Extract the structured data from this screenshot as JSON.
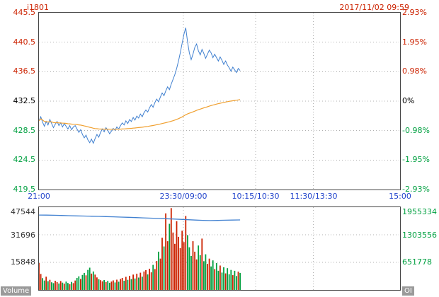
{
  "header": {
    "symbol": "i1801",
    "datetime": "2017/11/02 09:59"
  },
  "footer": {
    "volume_label": "Volume",
    "oi_label": "OI"
  },
  "colors": {
    "up": "#cc2200",
    "down": "#00a040",
    "neutral": "#000000",
    "price_line": "#4080d0",
    "avg_line": "#f0a030",
    "time_label": "#2244cc",
    "grid": "#b0b0b0",
    "border": "#444444",
    "axis_text": "#333333"
  },
  "chart_data": [
    {
      "type": "line",
      "title": "i1801 intraday price with average price line",
      "legend": "none",
      "grid": true,
      "ylim": [
        419.5,
        445.5
      ],
      "session_end_fraction": 0.557,
      "y_ticks_price": [
        "445.5",
        "440.5",
        "436.5",
        "432.5",
        "428.5",
        "424.5",
        "419.5"
      ],
      "y_tick_price_colors": [
        "up",
        "up",
        "up",
        "neutral",
        "down",
        "down",
        "down"
      ],
      "y_ticks_percent": [
        "2.93%",
        "1.95%",
        "0.98%",
        "0%",
        "-0.98%",
        "-1.95%",
        "-2.93%"
      ],
      "y_tick_percent_colors": [
        "up",
        "up",
        "up",
        "neutral",
        "down",
        "down",
        "down"
      ],
      "x_ticks": [
        {
          "label": "21:00",
          "pos": 0.0
        },
        {
          "label": "23:30/09:00",
          "pos": 0.4
        },
        {
          "label": "10:15/10:30",
          "pos": 0.6
        },
        {
          "label": "11:30/13:30",
          "pos": 0.76
        },
        {
          "label": "15:00",
          "pos": 1.0
        }
      ],
      "series": [
        {
          "name": "price",
          "values": [
            429.6,
            430.2,
            429.4,
            428.8,
            429.5,
            429.0,
            429.8,
            429.2,
            428.6,
            429.1,
            429.5,
            428.9,
            429.3,
            428.7,
            429.2,
            428.8,
            428.4,
            428.9,
            428.3,
            428.7,
            428.9,
            428.4,
            427.9,
            428.3,
            427.6,
            427.1,
            427.5,
            426.8,
            426.4,
            426.9,
            426.3,
            427.0,
            427.6,
            427.2,
            427.9,
            428.4,
            428.0,
            428.6,
            428.2,
            427.7,
            428.1,
            428.5,
            428.2,
            428.7,
            428.4,
            428.9,
            429.3,
            429.0,
            429.6,
            429.2,
            429.8,
            429.5,
            430.1,
            429.7,
            430.3,
            430.0,
            430.6,
            430.2,
            430.8,
            431.2,
            430.9,
            431.5,
            432.0,
            431.6,
            432.3,
            432.8,
            432.4,
            433.1,
            433.7,
            433.3,
            434.0,
            434.6,
            434.2,
            435.0,
            435.7,
            436.4,
            437.3,
            438.4,
            439.6,
            441.0,
            442.3,
            443.3,
            441.2,
            439.6,
            438.6,
            439.4,
            440.4,
            440.9,
            439.9,
            439.3,
            440.1,
            439.5,
            438.8,
            439.4,
            440.0,
            439.6,
            438.9,
            439.4,
            438.9,
            438.4,
            439.0,
            438.5,
            437.9,
            438.4,
            437.8,
            437.4,
            436.9,
            437.5,
            437.1,
            436.7,
            437.3,
            437.0
          ]
        },
        {
          "name": "average",
          "derived": "running_mean_of_price"
        }
      ]
    },
    {
      "type": "bar",
      "title": "Volume bars with Open Interest (OI) line",
      "grid": true,
      "session_end_fraction": 0.557,
      "ylim_volume": [
        0,
        47544
      ],
      "ylim_oi": [
        0,
        1955334
      ],
      "y_ticks_volume": [
        "47544",
        "31696",
        "15848"
      ],
      "y_ticks_oi": [
        "1955334",
        "1303556",
        "651778"
      ],
      "volume": [
        15500,
        9200,
        6800,
        5400,
        7600,
        5000,
        5800,
        4400,
        3900,
        5300,
        4500,
        3700,
        5100,
        4200,
        3600,
        4800,
        4000,
        3300,
        4600,
        3900,
        5400,
        6900,
        7800,
        6300,
        8600,
        9800,
        8400,
        11500,
        12800,
        9400,
        10600,
        8800,
        7200,
        6100,
        5600,
        4900,
        5700,
        4500,
        5200,
        4100,
        4800,
        5500,
        4300,
        5900,
        4700,
        6300,
        6900,
        5300,
        7500,
        5800,
        8100,
        6200,
        8800,
        6600,
        9300,
        7100,
        9900,
        7600,
        10600,
        11400,
        8900,
        12200,
        10100,
        14400,
        12000,
        16600,
        22000,
        18000,
        30000,
        25000,
        44000,
        28000,
        38000,
        47000,
        33000,
        26500,
        39500,
        30500,
        24000,
        34000,
        27500,
        42500,
        31500,
        24500,
        19500,
        28000,
        22000,
        17500,
        25500,
        20000,
        29500,
        16500,
        20500,
        15000,
        18000,
        13500,
        17000,
        12000,
        15500,
        11000,
        14000,
        10000,
        13000,
        9500,
        12500,
        9000,
        11500,
        8500,
        11000,
        8000,
        10500,
        9800
      ],
      "open_interest": [
        1770000,
        1768000,
        1764000,
        1760000,
        1755000,
        1750000,
        1746000,
        1742000,
        1738000,
        1733000,
        1728000,
        1722000,
        1716000,
        1710000,
        1703000,
        1696000,
        1690000,
        1683000,
        1676000,
        1668000,
        1660000,
        1652000,
        1645000,
        1640000,
        1643000,
        1648000,
        1652000,
        1655000
      ]
    }
  ]
}
